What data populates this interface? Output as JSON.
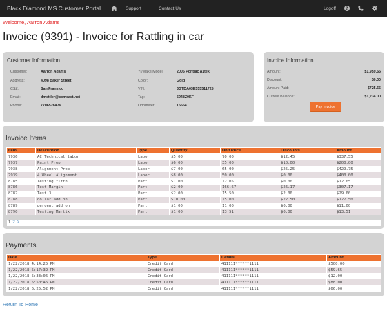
{
  "navbar": {
    "brand": "Black Diamond MS Customer Portal",
    "home_icon": "home-icon",
    "links": [
      "Support",
      "Contact Us"
    ],
    "logoff": "Logoff",
    "right_icons": [
      "help-icon",
      "phone-icon",
      "gear-icon"
    ]
  },
  "welcome": "Welcome, Aarron Adams",
  "title": "Invoice (9391) - Invoice for Rattling in car",
  "customer": {
    "heading": "Customer Information",
    "left": [
      {
        "label": "Customer:",
        "value": "Aarron Adams"
      },
      {
        "label": "Address:",
        "value": "4098 Baker Street"
      },
      {
        "label": "CSZ:",
        "value": "San Fransico"
      },
      {
        "label": "Email:",
        "value": "dmettler@comcast.net"
      },
      {
        "label": "Phone:",
        "value": "7706528476"
      }
    ],
    "right": [
      {
        "label": "Yr/Make/Model:",
        "value": "2005 Pontiac Aztek"
      },
      {
        "label": "Color:",
        "value": "Gold"
      },
      {
        "label": "VIN:",
        "value": "3GTDA03E555511725"
      },
      {
        "label": "Tag:",
        "value": "5948Z0KF"
      },
      {
        "label": "Odometer:",
        "value": "16554"
      }
    ]
  },
  "invoice_info": {
    "heading": "Invoice Information",
    "rows": [
      {
        "label": "Amount:",
        "value": "$1,959.65"
      },
      {
        "label": "Discount:",
        "value": "$0.00"
      },
      {
        "label": "Amount Paid:",
        "value": "$725.65"
      },
      {
        "label": "Current Balance:",
        "value": "$1,234.00"
      }
    ],
    "pay_button": "Pay Invoice"
  },
  "items": {
    "heading": "Invoice Items",
    "columns": [
      "Item",
      "Description",
      "Type",
      "Quantity",
      "Unit Price",
      "Discounts",
      "Amount"
    ],
    "rows": [
      [
        "7936",
        "AC Technical labor",
        "Labor",
        "$5.00",
        "70.00",
        "$12.45",
        "$337.55"
      ],
      [
        "7937",
        "Paint Prep",
        "Labor",
        "$6.00",
        "35.00",
        "$10.00",
        "$200.00"
      ],
      [
        "7938",
        "Alignment Prep",
        "Labor",
        "$7.00",
        "65.00",
        "$25.25",
        "$429.75"
      ],
      [
        "7939",
        "4 Wheel Alignment",
        "Labor",
        "$8.00",
        "50.00",
        "$0.00",
        "$400.00"
      ],
      [
        "8785",
        "Testing fifth",
        "Part",
        "$1.00",
        "12.05",
        "$0.00",
        "$12.05"
      ],
      [
        "8786",
        "Test Margin",
        "Part",
        "$2.00",
        "166.67",
        "$26.17",
        "$307.17"
      ],
      [
        "8787",
        "Test 3",
        "Part",
        "$2.00",
        "15.50",
        "$2.00",
        "$29.00"
      ],
      [
        "8788",
        "dollar add on",
        "Part",
        "$10.00",
        "15.00",
        "$22.50",
        "$127.50"
      ],
      [
        "8789",
        "percent add on",
        "Part",
        "$1.00",
        "11.00",
        "$0.00",
        "$11.00"
      ],
      [
        "8790",
        "Testing Martix",
        "Part",
        "$1.00",
        "13.51",
        "$0.00",
        "$13.51"
      ]
    ],
    "pager": [
      "1",
      "2",
      ">"
    ]
  },
  "payments": {
    "heading": "Payments",
    "columns": [
      "Date",
      "Type",
      "Details",
      "Amount"
    ],
    "rows": [
      [
        "1/22/2018 4:14:25 PM",
        "Credit Card",
        "411111******1111",
        "$500.00"
      ],
      [
        "1/22/2018 5:17:32 PM",
        "Credit Card",
        "411111******1111",
        "$59.65"
      ],
      [
        "1/22/2018 5:33:06 PM",
        "Credit Card",
        "411111******1111",
        "$12.00"
      ],
      [
        "1/22/2018 5:50:46 PM",
        "Credit Card",
        "411111******1111",
        "$88.00"
      ],
      [
        "1/22/2018 6:25:52 PM",
        "Credit Card",
        "411111******1111",
        "$66.00"
      ]
    ]
  },
  "return_link": "Return To Home",
  "colors": {
    "accent": "#ee7230",
    "navbar": "#222222",
    "panel": "#d3d3d3",
    "welcome": "#e02020",
    "link": "#337ab7",
    "alt_row": "#e5dde0"
  }
}
